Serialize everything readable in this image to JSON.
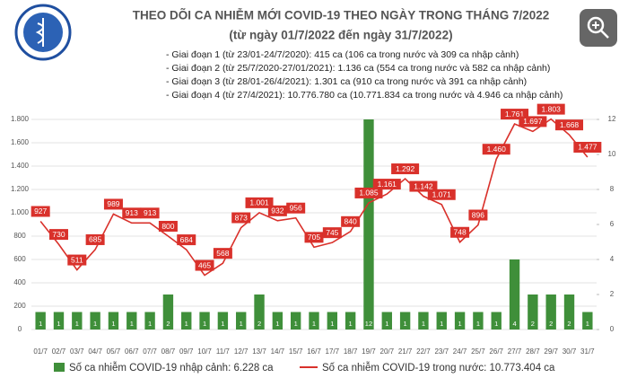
{
  "chart_data": {
    "type": "combo",
    "title": "THEO DÕI CA NHIỄM MỚI COVID-19 THEO NGÀY TRONG THÁNG 7/2022",
    "subtitle": "(từ ngày 01/7/2022 đến ngày 31/7/2022)",
    "notes": [
      "- Giai đoạn 1 (từ 23/01-24/7/2020): 415 ca (106 ca trong nước và 309 ca nhập cảnh)",
      "- Giai đoạn 2 (từ 25/7/2020-27/01/2021): 1.136 ca (554 ca trong nước và 582 ca nhập cảnh)",
      "- Giai đoạn 3 (từ 28/01-26/4/2021): 1.301 ca (910 ca trong nước và 391 ca nhập cảnh)",
      "- Giai đoạn 4 (từ 27/4/2021): 10.776.780 ca (10.771.834 ca trong nước và 4.946 ca nhập cảnh)"
    ],
    "categories": [
      "01/7",
      "02/7",
      "03/7",
      "04/7",
      "05/7",
      "06/7",
      "07/7",
      "08/7",
      "09/7",
      "10/7",
      "11/7",
      "12/7",
      "13/7",
      "14/7",
      "15/7",
      "16/7",
      "17/7",
      "18/7",
      "19/7",
      "20/7",
      "21/7",
      "22/7",
      "23/7",
      "24/7",
      "25/7",
      "26/7",
      "27/7",
      "28/7",
      "29/7",
      "30/7",
      "31/7"
    ],
    "series": [
      {
        "name": "Số ca nhiễm COVID-19 nhập cảnh: 6.228 ca",
        "type": "bar",
        "axis": "y2",
        "color": "#3f8f3a",
        "values": [
          1,
          1,
          1,
          1,
          1,
          1,
          1,
          2,
          1,
          1,
          1,
          1,
          2,
          1,
          1,
          1,
          1,
          1,
          12,
          1,
          1,
          1,
          1,
          1,
          1,
          1,
          4,
          2,
          2,
          2,
          1
        ]
      },
      {
        "name": "Số ca nhiễm COVID-19 trong nước: 10.773.404 ca",
        "type": "line",
        "color": "#d9312b",
        "values": [
          927,
          730,
          511,
          685,
          989,
          913,
          913,
          800,
          684,
          465,
          568,
          873,
          1001,
          932,
          956,
          705,
          745,
          840,
          1085,
          1161,
          1292,
          1142,
          1071,
          748,
          896,
          1460,
          1761,
          1697,
          1803,
          1668,
          1477
        ],
        "value_labels": [
          "927",
          "730",
          "511",
          "685",
          "989",
          "913",
          "913",
          "800",
          "684",
          "465",
          "568",
          "873",
          "1.001",
          "932",
          "956",
          "705",
          "745",
          "840",
          "1.085",
          "1.161",
          "1.292",
          "1.142",
          "1.071",
          "748",
          "896",
          "1.460",
          "1.761",
          "1.697",
          "1.803",
          "1.668",
          "1.477"
        ]
      }
    ],
    "ylim": [
      0,
      1800
    ],
    "yticks": [
      0,
      {
        "value": 200,
        "label": "200"
      },
      {
        "value": 400,
        "label": "400"
      },
      {
        "value": 600,
        "label": "600"
      },
      {
        "value": 800,
        "label": "800"
      },
      {
        "value": 1000,
        "label": "1.000"
      },
      {
        "value": 1200,
        "label": "1.200"
      },
      {
        "value": 1400,
        "label": "1.400"
      },
      {
        "value": 1600,
        "label": "1.600"
      },
      {
        "value": 1800,
        "label": "1.800"
      }
    ],
    "y2lim": [
      0,
      12
    ],
    "y2ticks": [
      0,
      2,
      4,
      6,
      8,
      10,
      12
    ],
    "grid": true
  }
}
